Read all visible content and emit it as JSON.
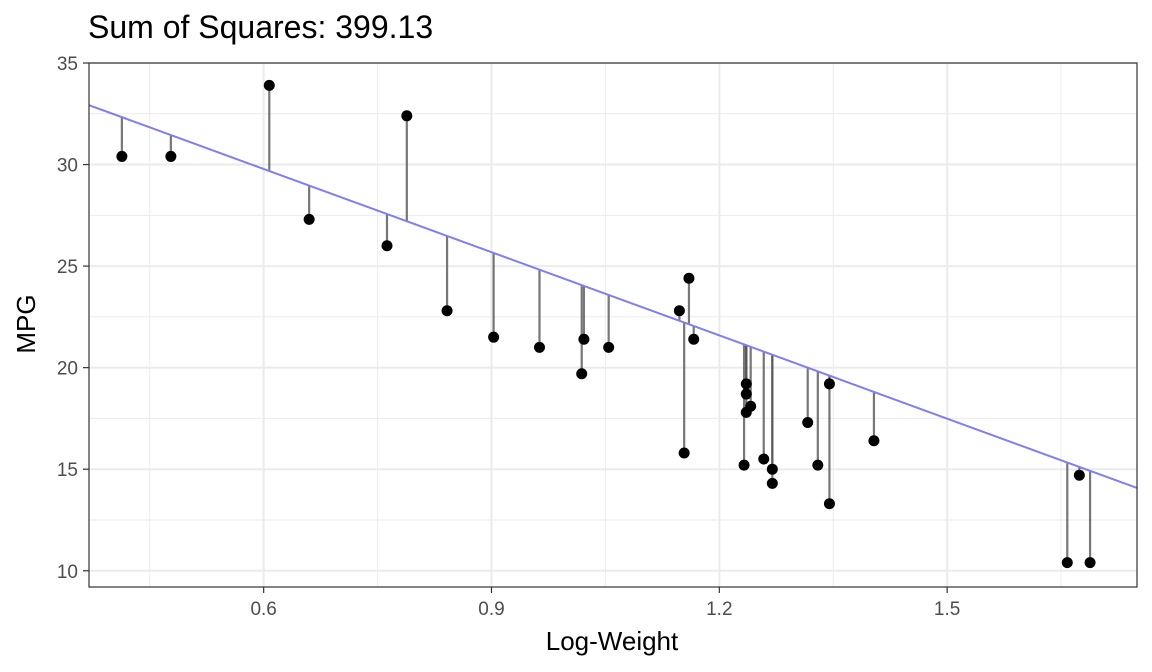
{
  "chart_data": {
    "type": "scatter",
    "title": "Sum of Squares: 399.13",
    "xlabel": "Log-Weight",
    "ylabel": "MPG",
    "xlim": [
      0.37,
      1.75
    ],
    "ylim": [
      9.2,
      35.0
    ],
    "x_ticks": [
      0.6,
      0.9,
      1.2,
      1.5
    ],
    "x_tick_labels": [
      "0.6",
      "0.9",
      "1.2",
      "1.5"
    ],
    "y_ticks": [
      10,
      15,
      20,
      25,
      30,
      35
    ],
    "y_tick_labels": [
      "10",
      "15",
      "20",
      "25",
      "30",
      "35"
    ],
    "grid": true,
    "fit_line": {
      "intercept": 37.98,
      "slope": -13.66,
      "color": "#7f7fef"
    },
    "colors": {
      "point": "#000000",
      "residual": "#555555",
      "grid": "#ebebeb",
      "panel_border": "#333333"
    },
    "points": [
      {
        "x": 0.4133,
        "y": 30.4
      },
      {
        "x": 0.4778,
        "y": 30.4
      },
      {
        "x": 0.6074,
        "y": 33.9
      },
      {
        "x": 0.6599,
        "y": 27.3
      },
      {
        "x": 0.7624,
        "y": 26.0
      },
      {
        "x": 0.7885,
        "y": 32.4
      },
      {
        "x": 0.8415,
        "y": 22.8
      },
      {
        "x": 0.9028,
        "y": 21.5
      },
      {
        "x": 0.9632,
        "y": 21.0
      },
      {
        "x": 1.0188,
        "y": 19.7
      },
      {
        "x": 1.0217,
        "y": 21.4
      },
      {
        "x": 1.0543,
        "y": 21.0
      },
      {
        "x": 1.1474,
        "y": 22.8
      },
      {
        "x": 1.1537,
        "y": 15.8
      },
      {
        "x": 1.16,
        "y": 24.4
      },
      {
        "x": 1.1663,
        "y": 21.4
      },
      {
        "x": 1.2326,
        "y": 15.2
      },
      {
        "x": 1.2355,
        "y": 19.2
      },
      {
        "x": 1.2355,
        "y": 17.8
      },
      {
        "x": 1.2355,
        "y": 18.7
      },
      {
        "x": 1.2413,
        "y": 18.1
      },
      {
        "x": 1.2585,
        "y": 15.5
      },
      {
        "x": 1.2698,
        "y": 15.0
      },
      {
        "x": 1.2698,
        "y": 14.3
      },
      {
        "x": 1.3164,
        "y": 17.3
      },
      {
        "x": 1.3297,
        "y": 15.2
      },
      {
        "x": 1.345,
        "y": 13.3
      },
      {
        "x": 1.345,
        "y": 19.2
      },
      {
        "x": 1.4036,
        "y": 16.4
      },
      {
        "x": 1.6582,
        "y": 10.4
      },
      {
        "x": 1.6741,
        "y": 14.7
      },
      {
        "x": 1.6882,
        "y": 10.4
      }
    ]
  }
}
